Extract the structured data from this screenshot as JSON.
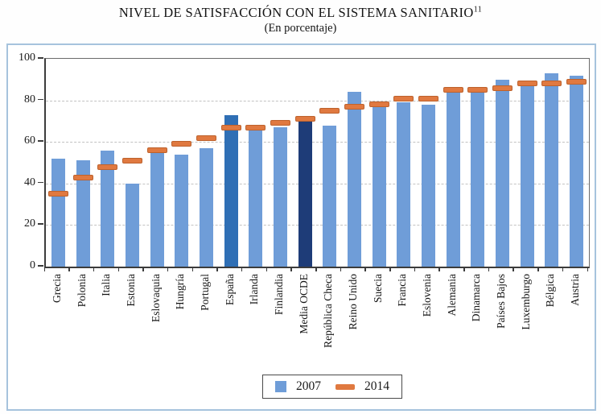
{
  "title": "NIVEL DE SATISFACCIÓN CON EL SISTEMA SANITARIO",
  "title_superscript": "11",
  "subtitle": "(En porcentaje)",
  "colors": {
    "bar_2007": "#6f9dd8",
    "bar_espana_highlight": "#2f6fb5",
    "bar_media_ocde_highlight": "#1e3c78",
    "dash_2014": "#e07940",
    "frame_border": "#a6c3dd",
    "grid": "#c2c2c2",
    "axis": "#3c3c3c",
    "text": "#1a1a1a"
  },
  "chart_data": {
    "type": "bar",
    "title": "NIVEL DE SATISFACCIÓN CON EL SISTEMA SANITARIO (En porcentaje)",
    "categories": [
      "Grecia",
      "Polonia",
      "Italia",
      "Estonia",
      "Eslovaquia",
      "Hungría",
      "Portugal",
      "España",
      "Irlanda",
      "Finlandia",
      "Media OCDE",
      "República Checa",
      "Reino Unido",
      "Suecia",
      "Francia",
      "Eslovenia",
      "Alemania",
      "Dinamarca",
      "Países Bajos",
      "Luxemburgo",
      "Bélgica",
      "Austria"
    ],
    "series": [
      {
        "name": "2007",
        "type": "bar",
        "values": [
          52,
          51,
          56,
          40,
          57,
          54,
          57,
          73,
          66,
          67,
          72,
          68,
          84,
          78,
          79,
          78,
          86,
          85,
          90,
          89,
          93,
          92
        ]
      },
      {
        "name": "2014",
        "type": "dash",
        "values": [
          35,
          43,
          48,
          51,
          56,
          59,
          62,
          67,
          67,
          69,
          71,
          75,
          77,
          78,
          81,
          81,
          85,
          85,
          86,
          88,
          88,
          89
        ]
      }
    ],
    "highlights": {
      "España": "#2f6fb5",
      "Media OCDE": "#1e3c78"
    },
    "ylim": [
      0,
      100
    ],
    "yticks": [
      0,
      20,
      40,
      60,
      80,
      100
    ],
    "xlabel": "",
    "ylabel": "",
    "grid": true,
    "legend_position": "bottom"
  }
}
